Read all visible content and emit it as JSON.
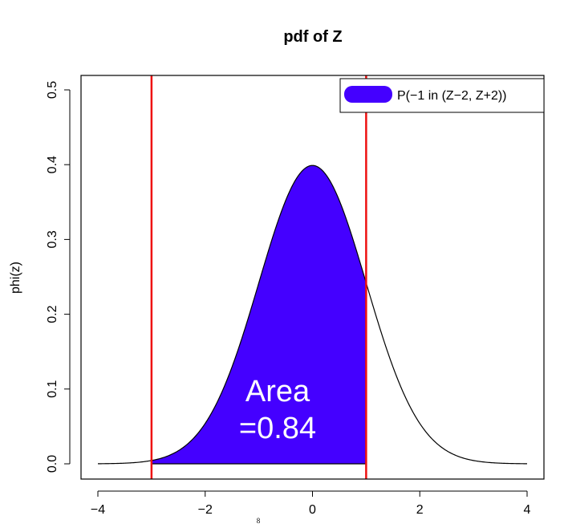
{
  "chart_data": {
    "type": "area",
    "title": "pdf of Z",
    "xlabel": "",
    "ylabel": "phi(z)",
    "xlim": [
      -4,
      4
    ],
    "ylim": [
      0,
      0.5
    ],
    "x_ticks": [
      -4,
      -2,
      0,
      2,
      4
    ],
    "x_tick_labels": [
      "−4",
      "−2",
      "0",
      "2",
      "4"
    ],
    "y_ticks": [
      0.0,
      0.1,
      0.2,
      0.3,
      0.4,
      0.5
    ],
    "y_tick_labels": [
      "0.0",
      "0.1",
      "0.2",
      "0.3",
      "0.4",
      "0.5"
    ],
    "curve": "standard normal density",
    "shaded_interval": [
      -3,
      1
    ],
    "vertical_lines": [
      -3,
      1
    ],
    "legend": {
      "label": "P(−1 in (Z−2, Z+2))",
      "placement": "top-right"
    },
    "annotation": {
      "line1": "Area",
      "line2": "=0.84"
    },
    "stray_mark": "8",
    "grid": false,
    "colors": {
      "fill": "#4400ff",
      "vline": "#ee1111",
      "curve": "#000000",
      "annotation": "#ffffff"
    }
  }
}
